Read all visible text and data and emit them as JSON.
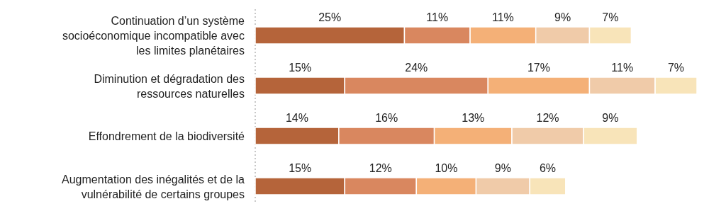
{
  "chart_data": {
    "type": "bar",
    "orientation": "horizontal",
    "stacked": true,
    "data_labels": true,
    "categories": [
      "Continuation d’un système socioéconomique incompatible avec les limites planétaires",
      "Diminution et dégradation des ressources naturelles",
      "Effondrement de la biodiversité",
      "Augmentation des inégalités et de la vulnérabilité de certains groupes"
    ],
    "series": [
      {
        "color": "#b5643a",
        "values": [
          25,
          15,
          14,
          15
        ],
        "value_labels": [
          "25%",
          "15%",
          "14%",
          "15%"
        ]
      },
      {
        "color": "#d9875f",
        "values": [
          11,
          24,
          16,
          12
        ],
        "value_labels": [
          "11%",
          "24%",
          "16%",
          "12%"
        ]
      },
      {
        "color": "#f4b077",
        "values": [
          11,
          17,
          13,
          10
        ],
        "value_labels": [
          "11%",
          "17%",
          "13%",
          "10%"
        ]
      },
      {
        "color": "#f0cba9",
        "values": [
          9,
          11,
          12,
          9
        ],
        "value_labels": [
          "9%",
          "11%",
          "12%",
          "9%"
        ]
      },
      {
        "color": "#f8e4b9",
        "values": [
          7,
          7,
          9,
          6
        ],
        "value_labels": [
          "7%",
          "7%",
          "9%",
          "6%"
        ]
      }
    ]
  }
}
